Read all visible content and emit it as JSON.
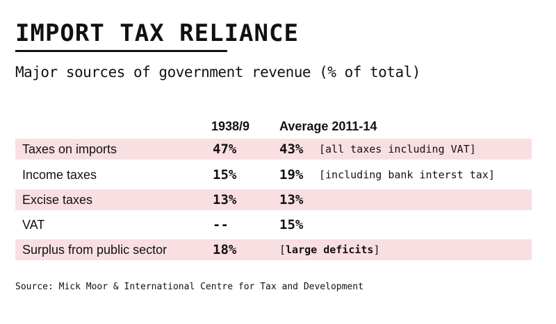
{
  "title": "IMPORT TAX RELIANCE",
  "subtitle": "Major sources of government revenue (% of total)",
  "colors": {
    "shade": "#f9dfe2",
    "text": "#111111"
  },
  "chart_data": {
    "type": "table",
    "title": "IMPORT TAX RELIANCE",
    "subtitle": "Major sources of government revenue (% of total)",
    "columns": [
      "1938/9",
      "Average 2011-14"
    ],
    "rows": [
      {
        "label": "Taxes on imports",
        "v1938": "47%",
        "v2011": "43%",
        "note": "[all taxes including VAT]"
      },
      {
        "label": "Income taxes",
        "v1938": "15%",
        "v2011": "19%",
        "note": "[including bank interst tax]"
      },
      {
        "label": "Excise taxes",
        "v1938": "13%",
        "v2011": "13%",
        "note": ""
      },
      {
        "label": "VAT",
        "v1938": "--",
        "v2011": "15%",
        "note": ""
      },
      {
        "label": "Surplus from public sector",
        "v1938": "18%",
        "v2011": "",
        "note_open": "[",
        "note_bold": "large deficits",
        "note_close": "]"
      }
    ],
    "source": "Source: Mick Moor & International Centre for Tax and Development"
  }
}
